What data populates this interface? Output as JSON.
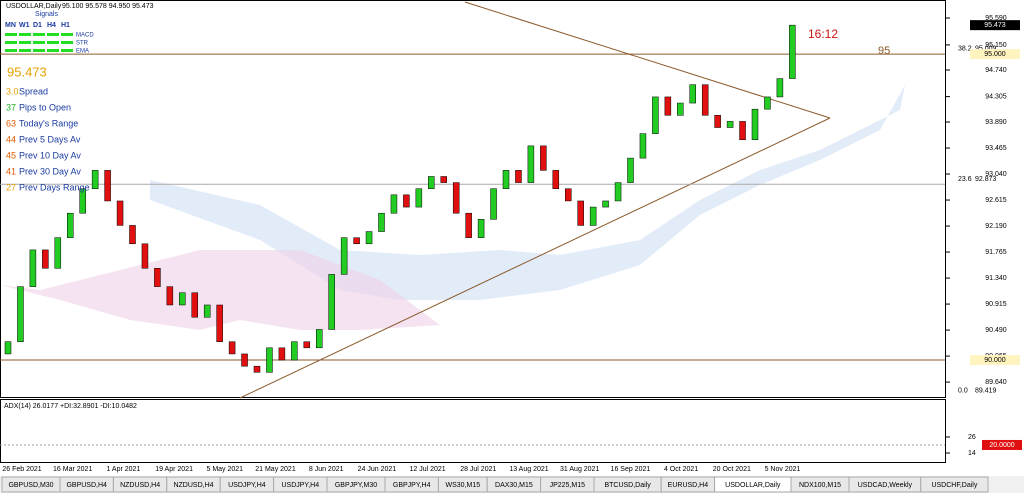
{
  "header": {
    "symbol": "USDOLLAR,Daily",
    "ohlc": "95.100 95.578 94.950 95.473"
  },
  "signals": {
    "title": "Signals",
    "timeframes": [
      "MN",
      "W1",
      "D1",
      "H4",
      "H1"
    ],
    "indicators": [
      "MACD",
      "STR",
      "EMA"
    ],
    "color": "#22dd22"
  },
  "price": "95.473",
  "stats": [
    {
      "value": "3.0",
      "label": "Spread",
      "color": "#e8a000"
    },
    {
      "value": "37",
      "label": "Pips to Open",
      "color": "#22b322"
    },
    {
      "value": "63",
      "label": "Today's Range",
      "color": "#e05a00"
    },
    {
      "value": "44",
      "label": "Prev 5 Days Av",
      "color": "#e05a00"
    },
    {
      "value": "45",
      "label": "Prev 10 Day Av",
      "color": "#e05a00"
    },
    {
      "value": "41",
      "label": "Prev 30 Day Av",
      "color": "#e05a00"
    },
    {
      "value": "27",
      "label": "Prev Days Range",
      "color": "#e8a000"
    }
  ],
  "annotations": {
    "time": "16:12",
    "level": "95"
  },
  "price_axis": {
    "range": [
      89.38,
      95.884
    ],
    "ticks": [
      {
        "value": 95.59,
        "label": "95.590"
      },
      {
        "value": 95.15,
        "label": "95.150"
      },
      {
        "value": 94.74,
        "label": "94.740"
      },
      {
        "value": 94.305,
        "label": "94.305"
      },
      {
        "value": 93.89,
        "label": "93.890"
      },
      {
        "value": 93.465,
        "label": "93.465"
      },
      {
        "value": 93.04,
        "label": "93.040"
      },
      {
        "value": 92.615,
        "label": "92.615"
      },
      {
        "value": 92.19,
        "label": "92.190"
      },
      {
        "value": 91.765,
        "label": "91.765"
      },
      {
        "value": 91.34,
        "label": "91.340"
      },
      {
        "value": 90.915,
        "label": "90.915"
      },
      {
        "value": 90.49,
        "label": "90.490"
      },
      {
        "value": 90.065,
        "label": "90.065"
      },
      {
        "value": 89.64,
        "label": "89.640"
      }
    ]
  },
  "levels": [
    {
      "value": 95.0,
      "label": "95.000",
      "color": "#8b5a2b"
    },
    {
      "value": 92.873,
      "label": null,
      "color": "#aaaaaa"
    },
    {
      "value": 90.0,
      "label": "90.000",
      "color": "#8b5a2b"
    }
  ],
  "fib": [
    {
      "level": "38.2",
      "price": "95.009",
      "value": 95.009
    },
    {
      "level": "23.6",
      "price": "92.873",
      "value": 92.873
    },
    {
      "level": "0.0",
      "price": "89.419",
      "value": 89.419
    }
  ],
  "current_price": {
    "value": 95.473,
    "label": "95.473"
  },
  "candles": {
    "up_color": "#22cc22",
    "down_color": "#e01010",
    "first_open": 90.1,
    "closes": [
      90.3,
      91.2,
      91.8,
      91.5,
      92.0,
      92.4,
      92.8,
      93.1,
      92.6,
      92.2,
      91.9,
      91.5,
      91.2,
      90.9,
      91.1,
      90.7,
      90.9,
      90.3,
      90.1,
      89.9,
      89.8,
      90.2,
      90.0,
      90.3,
      90.2,
      90.5,
      91.4,
      92.0,
      91.9,
      92.1,
      92.4,
      92.7,
      92.5,
      92.8,
      93.0,
      92.9,
      92.4,
      92.0,
      92.3,
      92.8,
      93.1,
      92.9,
      93.5,
      93.1,
      92.8,
      92.6,
      92.2,
      92.5,
      92.6,
      92.9,
      93.3,
      93.7,
      94.3,
      94.0,
      94.2,
      94.5,
      94.0,
      93.8,
      93.9,
      93.6,
      94.1,
      94.3,
      94.6,
      95.473
    ]
  },
  "adx": {
    "label": "ADX(14) 26.0177 +DI:32.8901 -DI:10.0482",
    "range": [
      7.25,
      53.7
    ],
    "ticks": [
      26,
      14
    ],
    "level": {
      "value": 20,
      "label": "20.0000"
    }
  },
  "dates": [
    "26 Feb 2021",
    "16 Mar 2021",
    "1 Apr 2021",
    "19 Apr 2021",
    "5 May 2021",
    "21 May 2021",
    "8 Jun 2021",
    "24 Jun 2021",
    "12 Jul 2021",
    "28 Jul 2021",
    "13 Aug 2021",
    "31 Aug 2021",
    "16 Sep 2021",
    "4 Oct 2021",
    "20 Oct 2021",
    "5 Nov 2021"
  ],
  "tabs": [
    "GBPUSD,M30",
    "GBPUSD,H4",
    "NZDUSD,H4",
    "NZDUSD,H4",
    "USDJPY,H4",
    "USDJPY,H4",
    "GBPJPY,M30",
    "GBPJPY,H4",
    "WS30,M15",
    "DAX30,M15",
    "JP225,M15",
    "BTCUSD,Daily",
    "EURUSD,H4",
    "USDOLLAR,Daily",
    "NDX100,M15",
    "USDCAD,Weekly",
    "USDCHF,Daily"
  ],
  "active_tab": 13
}
